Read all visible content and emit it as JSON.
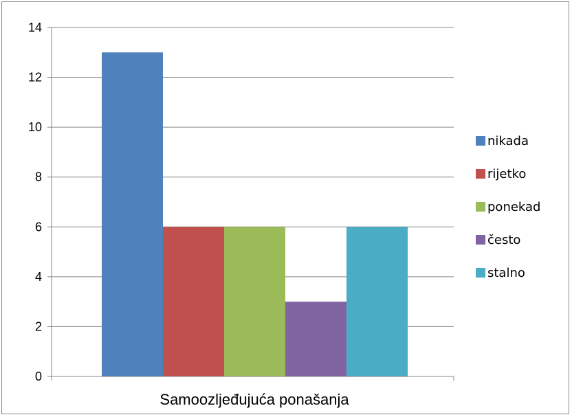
{
  "chart_data": {
    "type": "bar",
    "categories": [
      "Samoozljeđujuća ponašanja"
    ],
    "series": [
      {
        "name": "nikada",
        "values": [
          13
        ],
        "color": "#4F81BD"
      },
      {
        "name": "rijetko",
        "values": [
          6
        ],
        "color": "#C0504D"
      },
      {
        "name": "ponekad",
        "values": [
          6
        ],
        "color": "#9BBB59"
      },
      {
        "name": "često",
        "values": [
          3
        ],
        "color": "#8064A2"
      },
      {
        "name": "stalno",
        "values": [
          6
        ],
        "color": "#4BACC6"
      }
    ],
    "ylim": [
      0,
      14
    ],
    "yticks": [
      "0",
      "2",
      "4",
      "6",
      "8",
      "10",
      "12",
      "14"
    ],
    "grid": true,
    "legend": "right",
    "gridline_color": "#868686"
  }
}
